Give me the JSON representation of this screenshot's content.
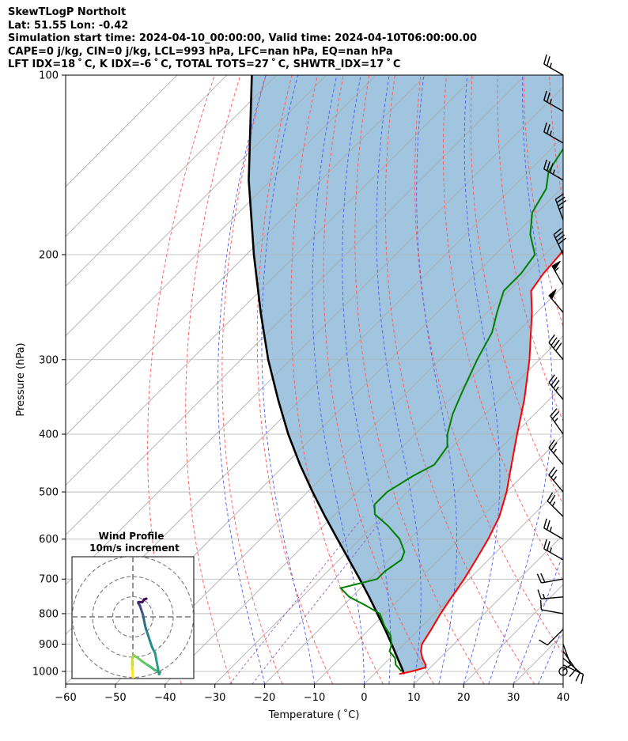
{
  "header": {
    "title": "SkewTLogP Northolt",
    "location": "Lat: 51.55   Lon: -0.42",
    "times": "Simulation start time: 2024-04-10_00:00:00, Valid time: 2024-04-10T06:00:00.00",
    "indices1": "CAPE=0 j/kg, CIN=0 j/kg, LCL=993 hPa, LFC=nan hPa, EQ=nan hPa",
    "indices2": "LFT IDX=18 ˚ C, K IDX=-6 ˚ C, TOTAL TOTS=27 ˚ C, SHWTR_IDX=17 ˚ C"
  },
  "chart_data": {
    "type": "skew-t log-p",
    "xlabel": "Temperature ( ˚C)",
    "ylabel": "Pressure (hPa)",
    "xlim": [
      -60,
      40
    ],
    "ylim": [
      1050,
      100
    ],
    "x_ticks": [
      -60,
      -50,
      -40,
      -30,
      -20,
      -10,
      0,
      10,
      20,
      30,
      40
    ],
    "x_tick_labels": [
      "−60",
      "−50",
      "−40",
      "−30",
      "−20",
      "−10",
      "0",
      "10",
      "20",
      "30",
      "40"
    ],
    "y_ticks": [
      1000,
      900,
      800,
      700,
      600,
      500,
      400,
      300,
      200,
      100
    ],
    "y_tick_labels": [
      "1000",
      "900",
      "800",
      "700",
      "600",
      "500",
      "400",
      "300",
      "200",
      "100"
    ],
    "grid": true,
    "isotherm_spacing_c": 10,
    "temperature": {
      "color": "#ff0000",
      "p": [
        1010,
        1000,
        985,
        975,
        950,
        925,
        900,
        850,
        800,
        750,
        700,
        650,
        600,
        550,
        500,
        450,
        400,
        350,
        300,
        250,
        230,
        215,
        200,
        185,
        170,
        155,
        140,
        125,
        110,
        100
      ],
      "t": [
        5,
        7,
        9,
        8.5,
        6.5,
        4.8,
        3.6,
        2.5,
        1.2,
        0.1,
        -1,
        -2.5,
        -4.2,
        -6.5,
        -10,
        -14.5,
        -19.5,
        -25,
        -32,
        -41,
        -45.5,
        -46.5,
        -47,
        -48,
        -49.5,
        -52,
        -55.5,
        -59.5,
        -64,
        -67
      ]
    },
    "dewpoint": {
      "color": "#008000",
      "p": [
        1000,
        975,
        950,
        925,
        900,
        870,
        840,
        800,
        775,
        750,
        725,
        700,
        680,
        650,
        630,
        600,
        570,
        545,
        525,
        500,
        470,
        450,
        420,
        400,
        370,
        340,
        300,
        270,
        250,
        230,
        215,
        200,
        185,
        170,
        155,
        145,
        130,
        115,
        100
      ],
      "t": [
        5,
        2.5,
        1,
        -1.5,
        -2.5,
        -4.5,
        -7.5,
        -11,
        -15.5,
        -20.5,
        -24,
        -18.5,
        -18.5,
        -17.5,
        -18.5,
        -22,
        -27,
        -32,
        -34,
        -34,
        -32,
        -30,
        -31,
        -33.5,
        -36.5,
        -39,
        -42.5,
        -45,
        -48,
        -51,
        -51,
        -52,
        -57,
        -61,
        -63,
        -66,
        -68,
        -70,
        -71
      ]
    },
    "parcel": {
      "color": "#000000",
      "p": [
        1010,
        1000,
        993,
        950,
        900,
        850,
        800,
        750,
        700,
        650,
        600,
        550,
        500,
        450,
        400,
        350,
        300,
        250,
        200,
        150,
        100
      ],
      "t": [
        6,
        5.3,
        4.8,
        1.5,
        -2.5,
        -6.8,
        -11.5,
        -16.5,
        -22,
        -28,
        -34.5,
        -41.5,
        -49,
        -57,
        -65.5,
        -74.5,
        -84.5,
        -95.5,
        -108.5,
        -124.5,
        -145
      ]
    },
    "cin_shading_color": "#a1c5de",
    "wind_barbs": {
      "units": "knots",
      "p": [
        1000,
        975,
        950,
        925,
        900,
        850,
        800,
        750,
        700,
        650,
        600,
        550,
        500,
        450,
        400,
        350,
        300,
        250,
        225,
        200,
        175,
        150,
        130,
        115,
        100
      ],
      "speed": [
        0,
        10,
        10,
        10,
        10,
        10,
        10,
        15,
        20,
        25,
        25,
        25,
        25,
        25,
        25,
        35,
        40,
        50,
        55,
        40,
        35,
        35,
        25,
        25,
        25
      ],
      "direction": [
        0,
        115,
        130,
        145,
        160,
        225,
        280,
        265,
        260,
        300,
        300,
        315,
        320,
        320,
        325,
        320,
        320,
        320,
        330,
        335,
        340,
        300,
        300,
        300,
        300
      ]
    },
    "hodograph": {
      "title": "Wind Profile",
      "subtitle": "10m/s increment",
      "rings_ms": [
        10,
        20,
        30
      ],
      "u": [
        0.0,
        -0.3,
        -0.4,
        -0.3,
        0.0,
        0.5,
        1.0,
        2.0,
        4.5,
        7.5,
        9.0,
        11.0,
        12.5,
        13.5,
        13.0,
        11.0,
        9.5,
        8.5,
        7.5,
        6.5,
        6.0,
        5.5,
        5.0,
        4.5,
        4.0,
        3.5,
        2.7,
        2.7,
        3.3,
        3.7,
        4.7,
        5.7,
        6.7
      ],
      "v": [
        -30.0,
        -26.0,
        -23.5,
        -21.0,
        -20.0,
        -19.0,
        -19.5,
        -20.0,
        -22.0,
        -24.0,
        -25.0,
        -26.5,
        -27.0,
        -27.5,
        -28.5,
        -18.0,
        -15.0,
        -12.0,
        -9.0,
        -6.0,
        -4.0,
        -1.5,
        1.0,
        2.5,
        4.0,
        5.5,
        6.7,
        7.3,
        7.3,
        7.3,
        7.3,
        8.7,
        9.0
      ]
    }
  }
}
